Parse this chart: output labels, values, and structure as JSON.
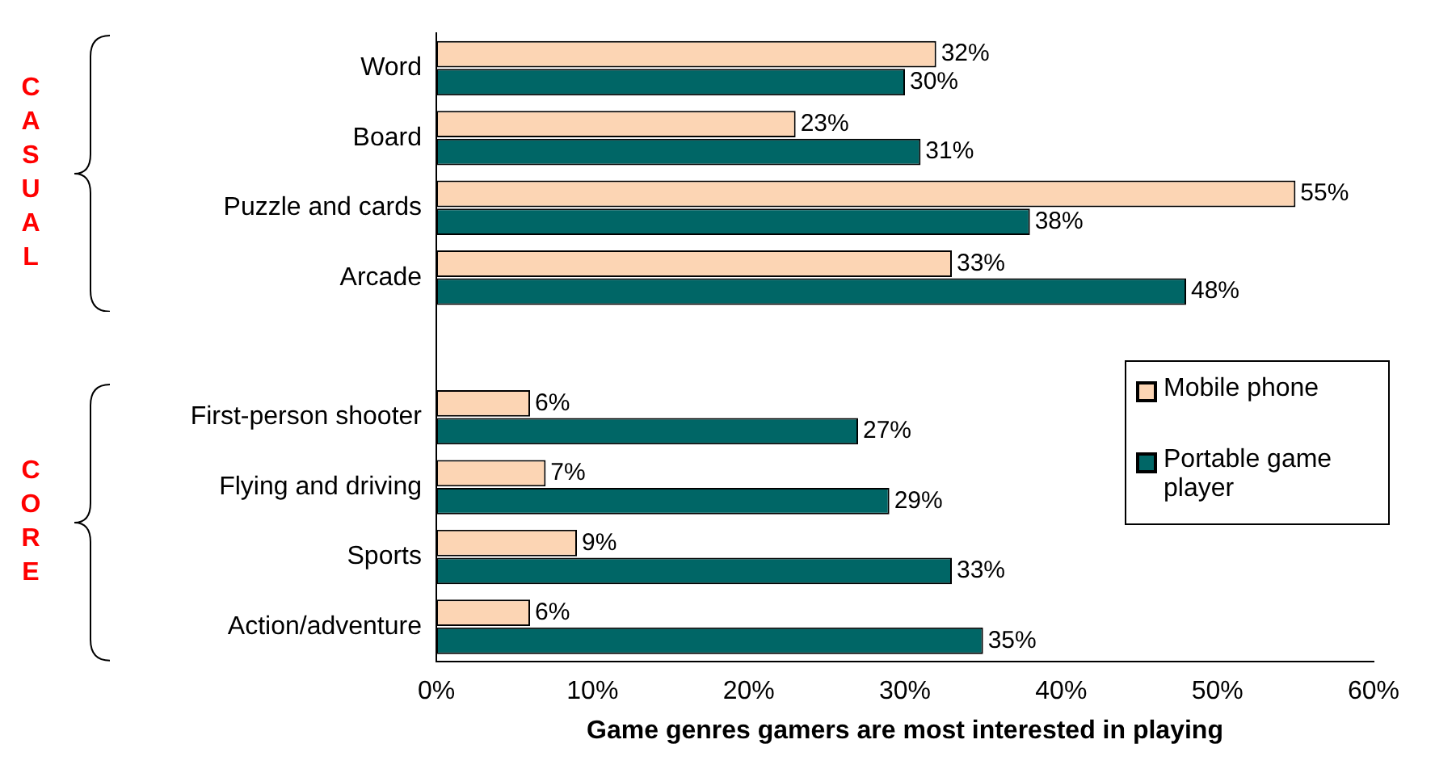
{
  "chart_data": {
    "type": "bar",
    "orientation": "horizontal",
    "xlabel": "Game genres gamers are most interested in playing",
    "categories": [
      "Word",
      "Board",
      "Puzzle and cards",
      "Arcade",
      null,
      "First-person shooter",
      "Flying and driving",
      "Sports",
      "Action/adventure"
    ],
    "series": [
      {
        "name": "Mobile phone",
        "color": "#fcd5b4",
        "values": [
          32,
          23,
          55,
          33,
          null,
          6,
          7,
          9,
          6
        ],
        "value_labels": [
          "32%",
          "23%",
          "55%",
          "33%",
          null,
          "6%",
          "7%",
          "9%",
          "6%"
        ]
      },
      {
        "name": "Portable game player",
        "color": "#006666",
        "values": [
          30,
          31,
          38,
          48,
          null,
          27,
          29,
          33,
          35
        ],
        "value_labels": [
          "30%",
          "31%",
          "38%",
          "48%",
          null,
          "27%",
          "29%",
          "33%",
          "35%"
        ]
      }
    ],
    "xlim": [
      0,
      60
    ],
    "xticks": [
      {
        "value": 0,
        "label": "0%"
      },
      {
        "value": 10,
        "label": "10%"
      },
      {
        "value": 20,
        "label": "20%"
      },
      {
        "value": 30,
        "label": "30%"
      },
      {
        "value": 40,
        "label": "40%"
      },
      {
        "value": 50,
        "label": "50%"
      },
      {
        "value": 60,
        "label": "60%"
      }
    ],
    "legend": "right",
    "annotations": [
      "CASUAL",
      "CORE"
    ]
  }
}
